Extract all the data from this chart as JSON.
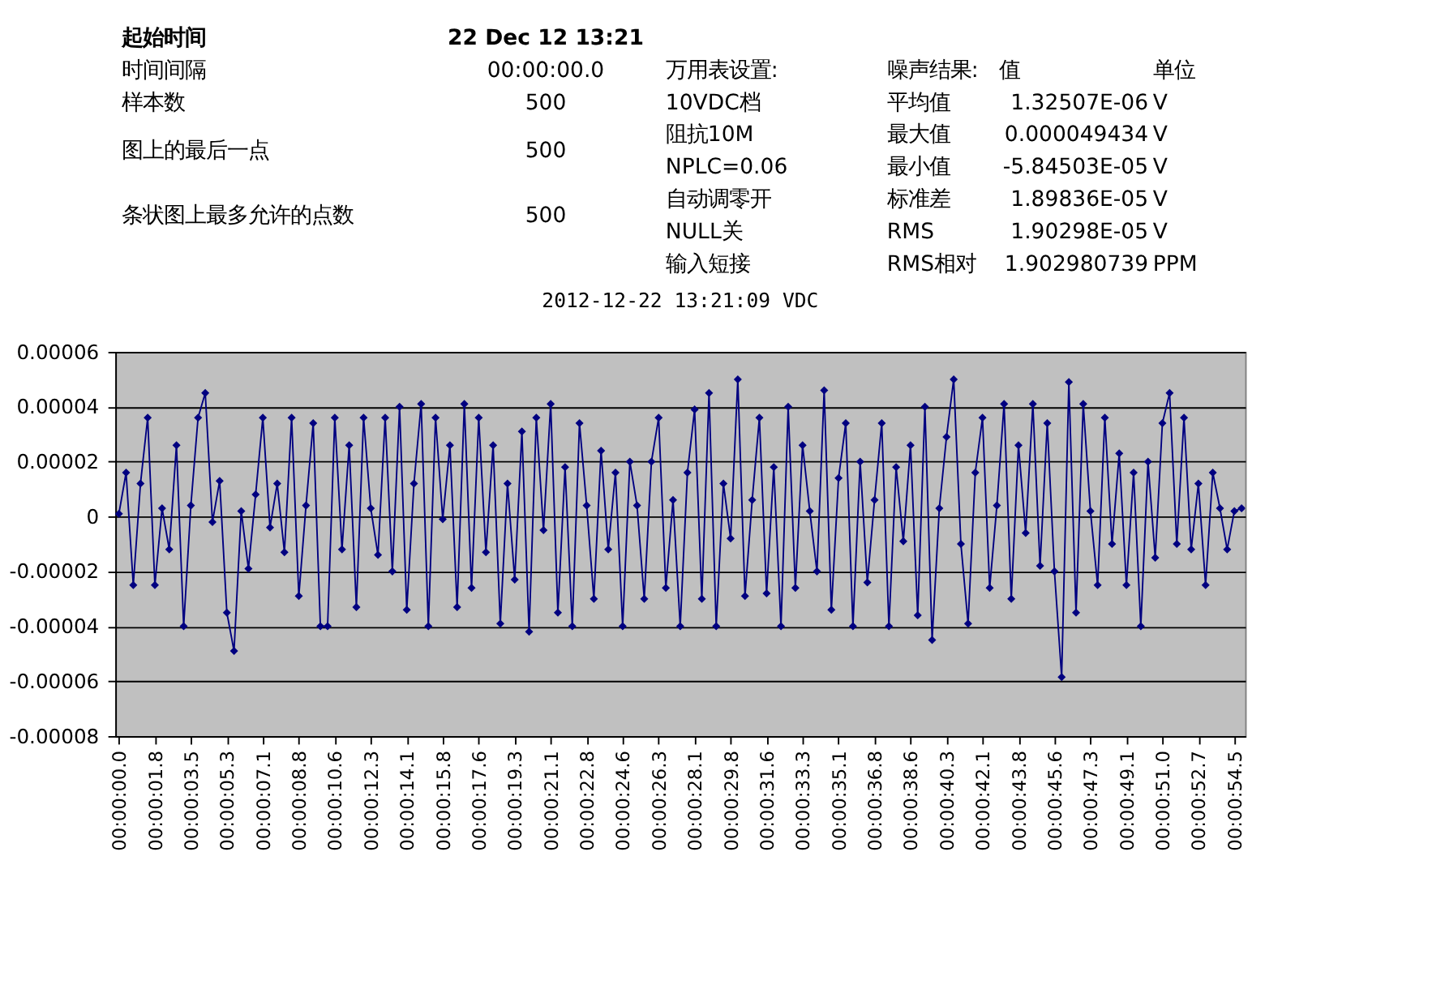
{
  "chart_data": {
    "type": "line",
    "title": "2012-12-22 13:21:09 VDC",
    "annotations": [
      "起始时间",
      "时间间隔",
      "样本数",
      "图上的最后一点",
      "条状图上最多允许的点数",
      "22 Dec 12 13:21",
      "00:00:00.0",
      "500",
      "500",
      "500",
      "万用表设置:",
      "10VDC档",
      "阻抗10M",
      "NPLC=0.06",
      "自动调零开",
      "NULL关",
      "输入短接",
      "噪声结果:",
      "平均值",
      "最大值",
      "最小值",
      "标准差",
      "RMS",
      "RMS相对",
      "值",
      "1.32507E-06",
      "0.000049434",
      "-5.84503E-05",
      "1.89836E-05",
      "1.90298E-05",
      "1.902980739",
      "单位",
      "V",
      "V",
      "V",
      "V",
      "V",
      "PPM"
    ],
    "categories": [
      "00:00:00.0",
      null,
      null,
      null,
      null,
      "00:00:01.8",
      null,
      null,
      null,
      null,
      "00:00:03.5",
      null,
      null,
      null,
      null,
      "00:00:05.3",
      null,
      null,
      null,
      null,
      "00:00:07.1",
      null,
      null,
      null,
      null,
      "00:00:08.8",
      null,
      null,
      null,
      null,
      "00:00:10.6",
      null,
      null,
      null,
      null,
      "00:00:12.3",
      null,
      null,
      null,
      null,
      "00:00:14.1",
      null,
      null,
      null,
      null,
      "00:00:15.8",
      null,
      null,
      null,
      null,
      "00:00:17.6",
      null,
      null,
      null,
      null,
      "00:00:19.3",
      null,
      null,
      null,
      null,
      "00:00:21.1",
      null,
      null,
      null,
      null,
      "00:00:22.8",
      null,
      null,
      null,
      null,
      "00:00:24.6",
      null,
      null,
      null,
      null,
      "00:00:26.3",
      null,
      null,
      null,
      null,
      "00:00:28.1",
      null,
      null,
      null,
      null,
      "00:00:29.8",
      null,
      null,
      null,
      null,
      "00:00:31.6",
      null,
      null,
      null,
      null,
      "00:00:33.3",
      null,
      null,
      null,
      null,
      "00:00:35.1",
      null,
      null,
      null,
      null,
      "00:00:36.8",
      null,
      null,
      null,
      null,
      "00:00:38.6",
      null,
      null,
      null,
      null,
      "00:00:40.3",
      null,
      null,
      null,
      null,
      "00:00:42.1",
      null,
      null,
      null,
      null,
      "00:00:43.8",
      null,
      null,
      null,
      null,
      "00:00:45.6",
      null,
      null,
      null,
      null,
      "00:00:47.3",
      null,
      null,
      null,
      null,
      "00:00:49.1",
      null,
      null,
      null,
      null,
      "00:00:51.0",
      null,
      null,
      null,
      null,
      "00:00:52.7",
      null,
      null,
      null,
      null,
      "00:00:54.5",
      null
    ],
    "series": [
      {
        "color": "#000080",
        "values": [
          1e-06,
          1.6e-05,
          -2.5e-05,
          1.2e-05,
          3.6e-05,
          -2.5e-05,
          3e-06,
          -1.2e-05,
          2.6e-05,
          -4e-05,
          4e-06,
          3.6e-05,
          4.5e-05,
          -2e-06,
          1.3e-05,
          -3.5e-05,
          -4.9e-05,
          2e-06,
          -1.9e-05,
          8e-06,
          3.6e-05,
          -4e-06,
          1.2e-05,
          -1.3e-05,
          3.6e-05,
          -2.9e-05,
          4e-06,
          3.4e-05,
          -4e-05,
          -4e-05,
          3.6e-05,
          -1.2e-05,
          2.6e-05,
          -3.3e-05,
          3.6e-05,
          3e-06,
          -1.4e-05,
          3.6e-05,
          -2e-05,
          4e-05,
          -3.4e-05,
          1.2e-05,
          4.1e-05,
          -4e-05,
          3.6e-05,
          -1e-06,
          2.6e-05,
          -3.3e-05,
          4.1e-05,
          -2.6e-05,
          3.6e-05,
          -1.3e-05,
          2.6e-05,
          -3.9e-05,
          1.2e-05,
          -2.3e-05,
          3.1e-05,
          -4.2e-05,
          3.6e-05,
          -5e-06,
          4.1e-05,
          -3.5e-05,
          1.8e-05,
          -4e-05,
          3.4e-05,
          4e-06,
          -3e-05,
          2.4e-05,
          -1.2e-05,
          1.6e-05,
          -4e-05,
          2e-05,
          4e-06,
          -3e-05,
          2e-05,
          3.6e-05,
          -2.6e-05,
          6e-06,
          -4e-05,
          1.6e-05,
          3.9e-05,
          -3e-05,
          4.5e-05,
          -4e-05,
          1.2e-05,
          -8e-06,
          5e-05,
          -2.9e-05,
          6e-06,
          3.6e-05,
          -2.8e-05,
          1.8e-05,
          -4e-05,
          4e-05,
          -2.6e-05,
          2.6e-05,
          2e-06,
          -2e-05,
          4.6e-05,
          -3.4e-05,
          1.4e-05,
          3.4e-05,
          -4e-05,
          2e-05,
          -2.4e-05,
          6e-06,
          3.4e-05,
          -4e-05,
          1.8e-05,
          -9e-06,
          2.6e-05,
          -3.6e-05,
          4e-05,
          -4.5e-05,
          3e-06,
          2.9e-05,
          5e-05,
          -1e-05,
          -3.9e-05,
          1.6e-05,
          3.6e-05,
          -2.6e-05,
          4e-06,
          4.1e-05,
          -3e-05,
          2.6e-05,
          -6e-06,
          4.1e-05,
          -1.8e-05,
          3.4e-05,
          -2e-05,
          -5.85e-05,
          4.9e-05,
          -3.5e-05,
          4.1e-05,
          2e-06,
          -2.5e-05,
          3.6e-05,
          -1e-05,
          2.3e-05,
          -2.5e-05,
          1.6e-05,
          -4e-05,
          2e-05,
          -1.5e-05,
          3.4e-05,
          4.5e-05,
          -1e-05,
          3.6e-05,
          -1.2e-05,
          1.2e-05,
          -2.5e-05,
          1.6e-05,
          3e-06,
          -1.2e-05,
          2e-06,
          3e-06
        ]
      }
    ],
    "ylim": [
      -8e-05,
      6e-05
    ],
    "yticks": [
      {
        "value": -8e-05,
        "label": "-0.00008"
      },
      {
        "value": -6e-05,
        "label": "-0.00006"
      },
      {
        "value": -4e-05,
        "label": "-0.00004"
      },
      {
        "value": -2e-05,
        "label": "-0.00002"
      },
      {
        "value": 0,
        "label": "0"
      },
      {
        "value": 2e-05,
        "label": "0.00002"
      },
      {
        "value": 4e-05,
        "label": "0.00004"
      },
      {
        "value": 6e-05,
        "label": "0.00006"
      }
    ],
    "grid": "y",
    "legend": false,
    "marker": "diamond",
    "line_style": "solid"
  }
}
